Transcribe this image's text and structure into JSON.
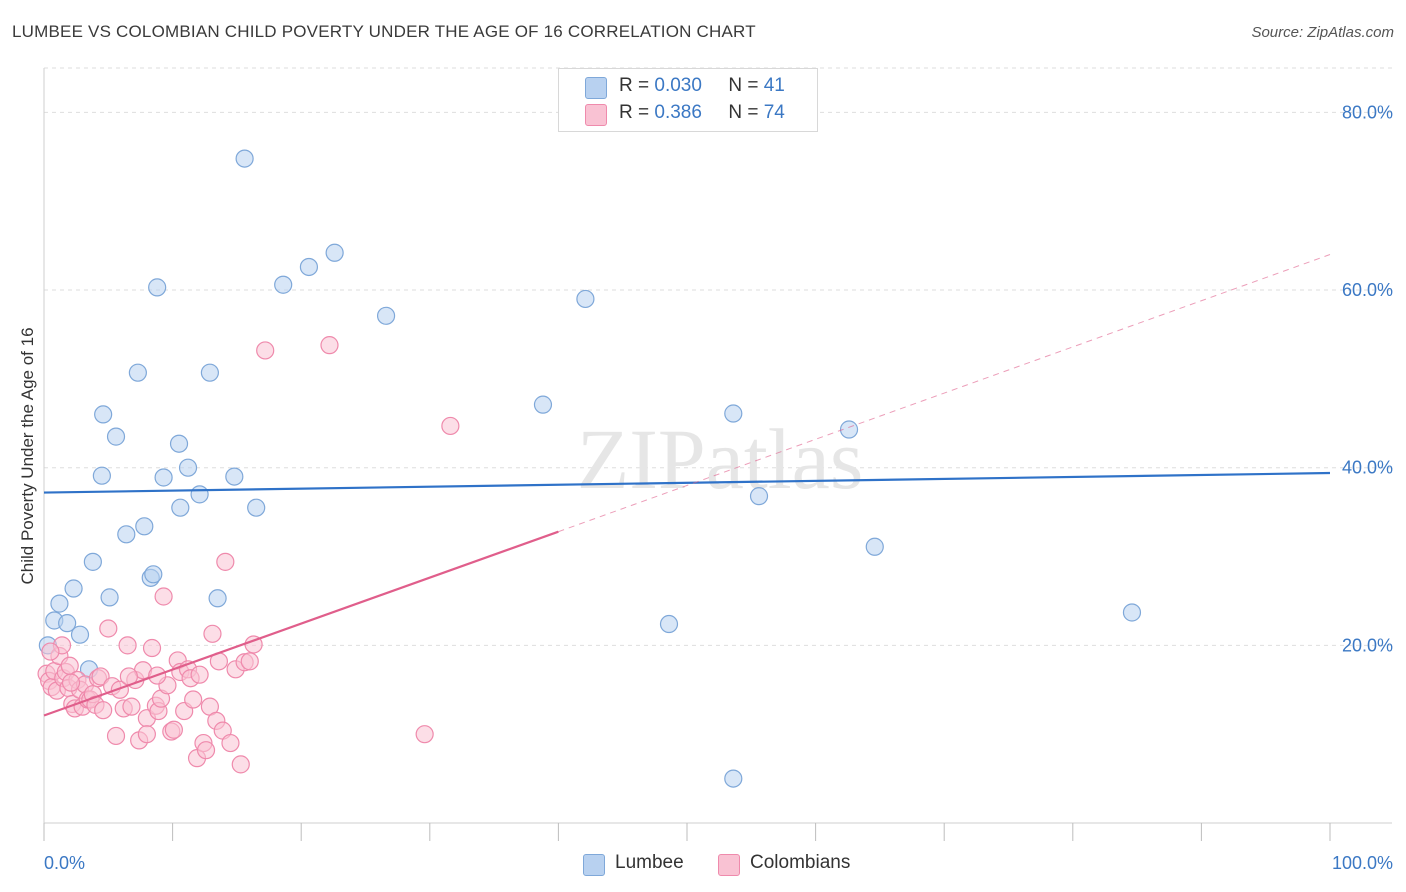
{
  "title": "LUMBEE VS COLOMBIAN CHILD POVERTY UNDER THE AGE OF 16 CORRELATION CHART",
  "source": "Source: ZipAtlas.com",
  "watermark": "ZIPatlas",
  "legend_top": [
    {
      "r_label": "R =",
      "r_value": "0.030",
      "n_label": "N =",
      "n_value": "41"
    },
    {
      "r_label": "R =",
      "r_value": "0.386",
      "n_label": "N =",
      "n_value": "74"
    }
  ],
  "legend_bottom": [
    "Lumbee",
    "Colombians"
  ],
  "colors": {
    "lumbee_fill": "#b8d1f0",
    "lumbee_stroke": "#7fa8d9",
    "lumbee_line": "#2f72c8",
    "colombians_fill": "#f9c2d3",
    "colombians_stroke": "#ef8aac",
    "colombians_line": "#e05e8b",
    "tick_label": "#3b78c4"
  },
  "chart_data": {
    "type": "scatter",
    "title": "LUMBEE VS COLOMBIAN CHILD POVERTY UNDER THE AGE OF 16 CORRELATION CHART",
    "xlabel": "",
    "ylabel": "Child Poverty Under the Age of 16",
    "xlim": [
      0,
      100
    ],
    "ylim": [
      0,
      85
    ],
    "x_tick_labels": [
      "0.0%",
      "100.0%"
    ],
    "y_ticks": [
      20,
      40,
      60,
      80
    ],
    "y_tick_labels": [
      "20.0%",
      "40.0%",
      "60.0%",
      "80.0%"
    ],
    "grid": true,
    "legend_position": "top-center",
    "series": [
      {
        "name": "Lumbee",
        "r": 0.03,
        "n": 41,
        "trend": {
          "x": [
            0,
            100
          ],
          "y": [
            37.2,
            39.4
          ],
          "style": "solid"
        },
        "points": [
          [
            0.3,
            20.0
          ],
          [
            0.8,
            22.8
          ],
          [
            1.2,
            24.7
          ],
          [
            1.8,
            22.5
          ],
          [
            2.3,
            26.4
          ],
          [
            2.8,
            21.2
          ],
          [
            3.5,
            17.3
          ],
          [
            3.8,
            29.4
          ],
          [
            4.5,
            39.1
          ],
          [
            4.6,
            46.0
          ],
          [
            5.1,
            25.4
          ],
          [
            5.6,
            43.5
          ],
          [
            6.4,
            32.5
          ],
          [
            7.3,
            50.7
          ],
          [
            7.8,
            33.4
          ],
          [
            8.3,
            27.6
          ],
          [
            8.5,
            28.0
          ],
          [
            8.8,
            60.3
          ],
          [
            9.3,
            38.9
          ],
          [
            10.5,
            42.7
          ],
          [
            10.6,
            35.5
          ],
          [
            11.2,
            40.0
          ],
          [
            12.1,
            37.0
          ],
          [
            12.9,
            50.7
          ],
          [
            13.5,
            25.3
          ],
          [
            14.8,
            39.0
          ],
          [
            15.6,
            74.8
          ],
          [
            16.5,
            35.5
          ],
          [
            18.6,
            60.6
          ],
          [
            20.6,
            62.6
          ],
          [
            22.6,
            64.2
          ],
          [
            26.6,
            57.1
          ],
          [
            38.8,
            47.1
          ],
          [
            42.1,
            59.0
          ],
          [
            48.6,
            22.4
          ],
          [
            53.6,
            46.1
          ],
          [
            53.6,
            5.0
          ],
          [
            55.6,
            36.8
          ],
          [
            62.6,
            44.3
          ],
          [
            64.6,
            31.1
          ],
          [
            84.6,
            23.7
          ]
        ]
      },
      {
        "name": "Colombians",
        "r": 0.386,
        "n": 74,
        "trend": {
          "x": [
            0,
            40
          ],
          "y": [
            12.1,
            32.8
          ],
          "x_dashed_to": 100,
          "y_dashed_to": 64.0,
          "style": "solid-then-dashed"
        },
        "points": [
          [
            0.2,
            16.8
          ],
          [
            0.4,
            16.0
          ],
          [
            0.6,
            15.3
          ],
          [
            0.8,
            17.1
          ],
          [
            1.0,
            14.9
          ],
          [
            1.2,
            18.8
          ],
          [
            1.4,
            20.0
          ],
          [
            1.5,
            16.3
          ],
          [
            1.7,
            17.0
          ],
          [
            1.9,
            15.2
          ],
          [
            2.0,
            17.7
          ],
          [
            2.2,
            13.4
          ],
          [
            2.4,
            12.9
          ],
          [
            2.6,
            16.1
          ],
          [
            2.8,
            15.0
          ],
          [
            3.0,
            13.1
          ],
          [
            3.2,
            15.6
          ],
          [
            3.4,
            13.9
          ],
          [
            3.6,
            13.9
          ],
          [
            3.8,
            14.5
          ],
          [
            4.0,
            13.3
          ],
          [
            4.2,
            16.3
          ],
          [
            4.4,
            16.5
          ],
          [
            4.6,
            12.7
          ],
          [
            5.0,
            21.9
          ],
          [
            5.3,
            15.4
          ],
          [
            5.6,
            9.8
          ],
          [
            5.9,
            15.0
          ],
          [
            6.2,
            12.9
          ],
          [
            6.5,
            20.0
          ],
          [
            6.8,
            13.1
          ],
          [
            7.1,
            16.1
          ],
          [
            7.4,
            9.3
          ],
          [
            7.7,
            17.2
          ],
          [
            8.0,
            11.8
          ],
          [
            8.0,
            10.0
          ],
          [
            8.4,
            19.7
          ],
          [
            8.7,
            13.2
          ],
          [
            8.9,
            12.6
          ],
          [
            9.1,
            14.0
          ],
          [
            9.3,
            25.5
          ],
          [
            9.6,
            15.5
          ],
          [
            9.9,
            10.3
          ],
          [
            10.1,
            10.5
          ],
          [
            10.4,
            18.3
          ],
          [
            10.6,
            17.0
          ],
          [
            10.9,
            12.6
          ],
          [
            11.2,
            17.3
          ],
          [
            11.4,
            16.3
          ],
          [
            11.6,
            13.9
          ],
          [
            11.9,
            7.3
          ],
          [
            12.1,
            16.7
          ],
          [
            12.4,
            9.0
          ],
          [
            12.6,
            8.2
          ],
          [
            12.9,
            13.1
          ],
          [
            13.1,
            21.3
          ],
          [
            13.4,
            11.5
          ],
          [
            13.6,
            18.2
          ],
          [
            13.9,
            10.4
          ],
          [
            14.1,
            29.4
          ],
          [
            14.5,
            9.0
          ],
          [
            14.9,
            17.3
          ],
          [
            15.3,
            6.6
          ],
          [
            15.6,
            18.1
          ],
          [
            16.0,
            18.2
          ],
          [
            16.3,
            20.1
          ],
          [
            17.2,
            53.2
          ],
          [
            22.2,
            53.8
          ],
          [
            29.6,
            10.0
          ],
          [
            31.6,
            44.7
          ],
          [
            6.6,
            16.5
          ],
          [
            8.8,
            16.6
          ],
          [
            0.5,
            19.3
          ],
          [
            2.1,
            15.8
          ]
        ]
      }
    ]
  }
}
